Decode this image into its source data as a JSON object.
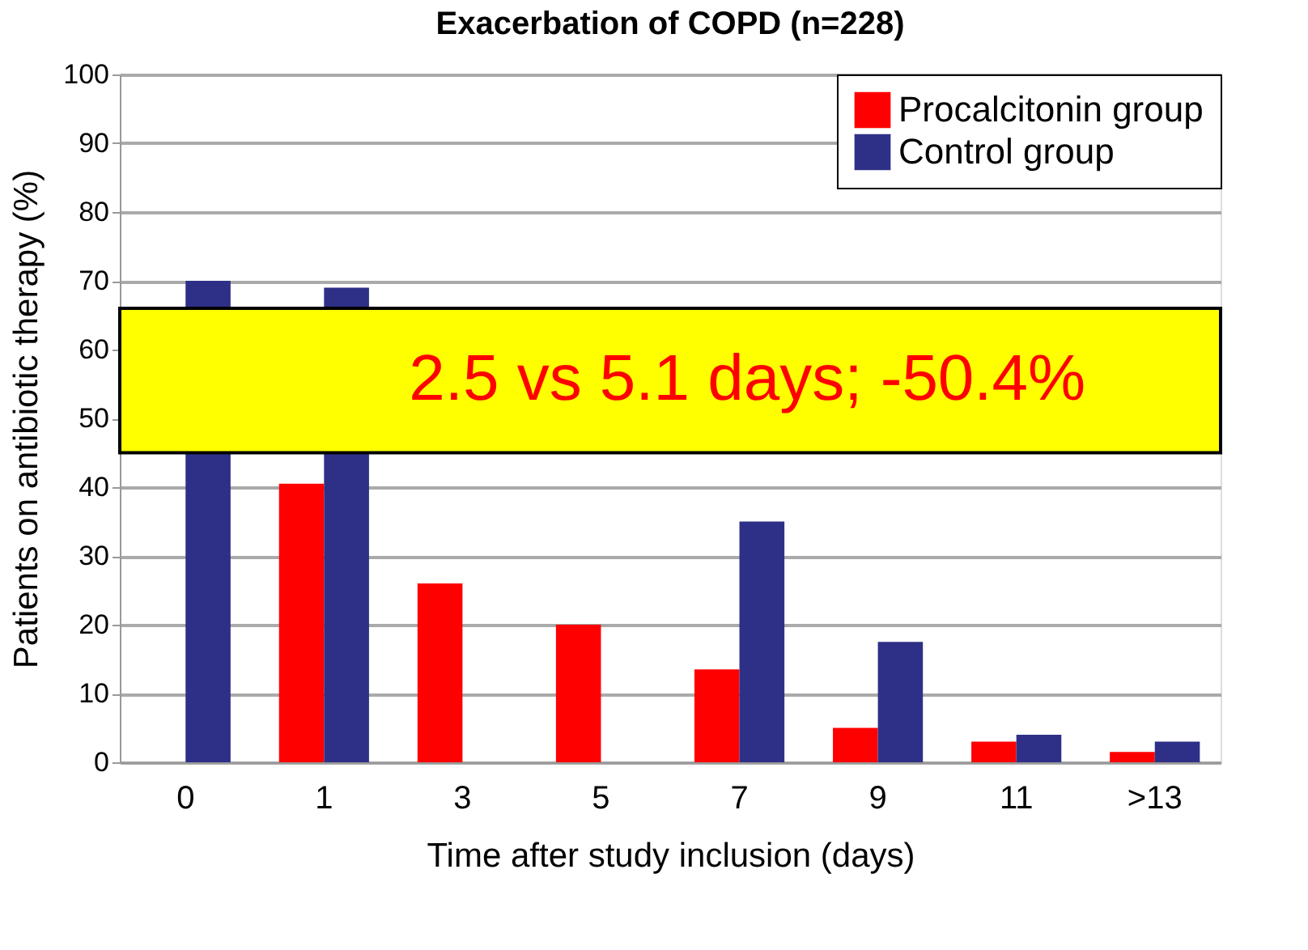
{
  "chart_data": {
    "type": "bar",
    "title": "Exacerbation of COPD (n=228)",
    "xlabel": "Time after study inclusion (days)",
    "ylabel": "Patients on antibiotic therapy (%)",
    "categories": [
      "0",
      "1",
      "3",
      "5",
      "7",
      "9",
      "11",
      ">13"
    ],
    "series": [
      {
        "name": "Procalcitonin group",
        "color": "#ff0000",
        "values": [
          null,
          40.5,
          26,
          20,
          13.5,
          5,
          3,
          1.5
        ]
      },
      {
        "name": "Control group",
        "color": "#2e3087",
        "values": [
          70,
          69,
          null,
          null,
          35,
          17.5,
          4,
          3
        ]
      }
    ],
    "ylim": [
      0,
      100
    ],
    "yticks": [
      0,
      10,
      20,
      30,
      40,
      50,
      60,
      70,
      80,
      90,
      100
    ],
    "grid": "y",
    "legend": "top right",
    "bands": [
      {
        "axis": "y",
        "from": 45,
        "to": 66,
        "label": "2.5 vs 5.1 days; -50.4%",
        "color": "#ffff00"
      }
    ]
  }
}
